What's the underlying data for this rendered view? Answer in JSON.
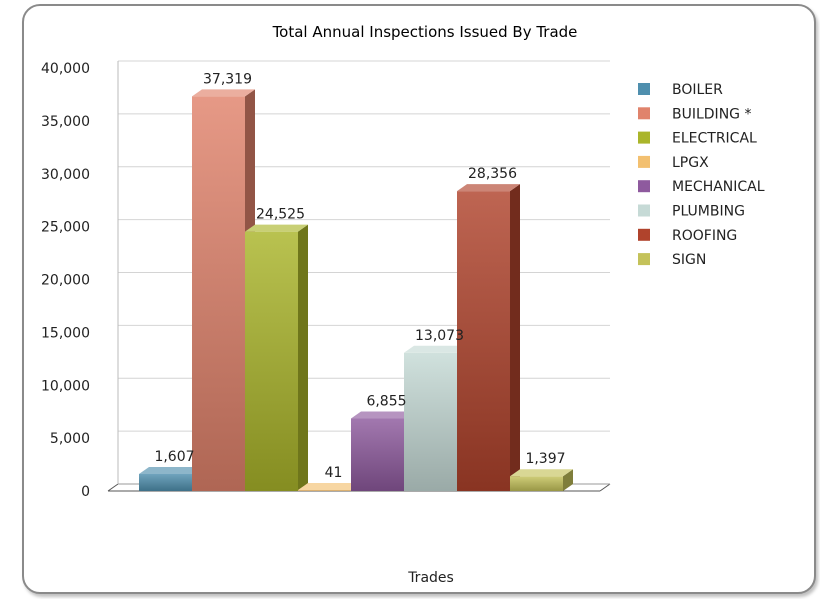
{
  "chart_data": {
    "type": "bar",
    "title": "Total Annual Inspections Issued By Trade",
    "xlabel": "Trades",
    "ylabel": "",
    "ylim": [
      0,
      40000
    ],
    "yticks": [
      "0",
      "5,000",
      "10,000",
      "15,000",
      "20,000",
      "25,000",
      "30,000",
      "35,000",
      "40,000"
    ],
    "categories": [
      "BOILER",
      "BUILDING *",
      "ELECTRICAL",
      "LPGX",
      "MECHANICAL",
      "PLUMBING",
      "ROOFING",
      "SIGN"
    ],
    "values": [
      1607,
      37319,
      24525,
      41,
      6855,
      13073,
      28356,
      1397
    ],
    "value_labels": [
      "1,607",
      "37,319",
      "24,525",
      "41",
      "6,855",
      "13,073",
      "28,356",
      "1,397"
    ],
    "colors": [
      "#4f8fae",
      "#e0836c",
      "#aab52a",
      "#f3c070",
      "#8e5a9e",
      "#c6dad6",
      "#b0432c",
      "#c4c25a"
    ],
    "grid": true,
    "legend_position": "right",
    "bar_style": "3d"
  }
}
